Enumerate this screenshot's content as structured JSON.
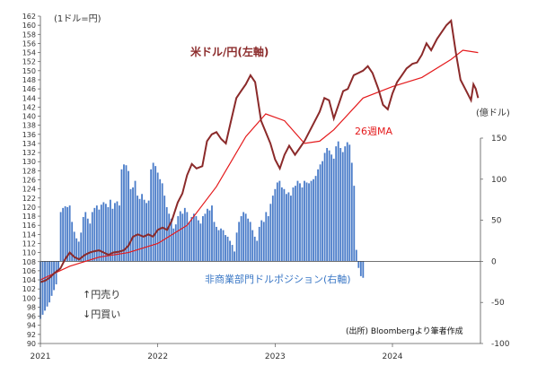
{
  "chart_data": {
    "type": "bar+line",
    "left_axis_unit": "(1ドル=円)",
    "right_axis_unit": "(億ドル)",
    "series_labels": {
      "usdjpy": "米ドル/円(左軸)",
      "ma26": "26週MA",
      "position": "非商業部門ドルポジション(右軸)"
    },
    "annotations": {
      "yen_sell": "↑円売り",
      "yen_buy": "↓円買い"
    },
    "source": "(出所) Bloombergより筆者作成",
    "left_axis": {
      "min": 90,
      "max": 162,
      "step": 2
    },
    "right_axis": {
      "min": -100,
      "max": 150,
      "ticks": [
        150,
        100,
        50,
        0,
        -50,
        -100
      ]
    },
    "x_axis": {
      "min": 2021.0,
      "max": 2024.75,
      "ticks": [
        "2021",
        "2022",
        "2023",
        "2024"
      ]
    },
    "colors": {
      "usdjpy": "#8b2a2a",
      "ma26": "#e41a1c",
      "position": "#4a7cc9"
    },
    "usdjpy": {
      "x": [
        2021.0,
        2021.04,
        2021.08,
        2021.12,
        2021.17,
        2021.21,
        2021.25,
        2021.29,
        2021.33,
        2021.38,
        2021.42,
        2021.46,
        2021.5,
        2021.54,
        2021.58,
        2021.62,
        2021.67,
        2021.71,
        2021.75,
        2021.79,
        2021.83,
        2021.88,
        2021.92,
        2021.96,
        2022.0,
        2022.04,
        2022.08,
        2022.12,
        2022.17,
        2022.21,
        2022.25,
        2022.29,
        2022.33,
        2022.38,
        2022.42,
        2022.46,
        2022.5,
        2022.54,
        2022.58,
        2022.62,
        2022.67,
        2022.71,
        2022.75,
        2022.79,
        2022.83,
        2022.88,
        2022.92,
        2022.96,
        2023.0,
        2023.04,
        2023.08,
        2023.12,
        2023.17,
        2023.21,
        2023.25,
        2023.29,
        2023.33,
        2023.38,
        2023.42,
        2023.46,
        2023.5,
        2023.54,
        2023.58,
        2023.62,
        2023.67,
        2023.71,
        2023.75,
        2023.79,
        2023.83,
        2023.88,
        2023.92,
        2023.96,
        2024.0,
        2024.04,
        2024.08,
        2024.12,
        2024.17,
        2024.21,
        2024.25,
        2024.29,
        2024.33,
        2024.38,
        2024.42,
        2024.46,
        2024.5,
        2024.54,
        2024.58,
        2024.62,
        2024.67
      ],
      "y": [
        103.5,
        103.8,
        104.5,
        105.5,
        106.5,
        108.5,
        110.0,
        109.0,
        108.5,
        109.5,
        110.0,
        110.3,
        110.5,
        110.0,
        109.5,
        110.0,
        110.2,
        110.5,
        111.5,
        113.5,
        114.0,
        113.5,
        114.0,
        113.5,
        115.0,
        115.5,
        115.0,
        117.0,
        121.0,
        123.0,
        127.0,
        129.5,
        128.5,
        129.0,
        134.5,
        136.0,
        136.5,
        135.0,
        134.0,
        138.5,
        144.0,
        145.5,
        147.0,
        149.0,
        147.5,
        139.0,
        136.5,
        134.0,
        130.5,
        128.5,
        131.5,
        133.5,
        131.5,
        133.0,
        134.5,
        136.5,
        138.5,
        141.0,
        144.0,
        143.5,
        139.5,
        142.5,
        145.5,
        146.0,
        149.0,
        149.5,
        150.0,
        151.0,
        149.5,
        146.0,
        142.5,
        141.5,
        145.0,
        147.5,
        149.0,
        150.5,
        151.5,
        151.8,
        153.5,
        156.0,
        154.5,
        157.0,
        158.5,
        160.0,
        161.0,
        154.0,
        148.0,
        146.0,
        143.5
      ],
      "extra_x": [
        2024.69,
        2024.71,
        2024.73
      ],
      "extra_y": [
        147.0,
        146.0,
        144.0
      ]
    },
    "ma26": {
      "x": [
        2021.0,
        2021.25,
        2021.5,
        2021.75,
        2022.0,
        2022.25,
        2022.5,
        2022.75,
        2022.92,
        2023.08,
        2023.25,
        2023.38,
        2023.5,
        2023.75,
        2024.0,
        2024.25,
        2024.5,
        2024.6,
        2024.73
      ],
      "y": [
        104.0,
        107.0,
        109.0,
        110.0,
        112.0,
        116.0,
        124.5,
        135.5,
        140.5,
        139.0,
        134.0,
        134.5,
        137.0,
        144.0,
        146.5,
        148.5,
        152.5,
        154.5,
        154.0
      ]
    },
    "position": {
      "x_start": 2021.0,
      "x_step": 0.019231,
      "values": [
        -70,
        -65,
        -60,
        -55,
        -50,
        -42,
        -35,
        -28,
        -10,
        60,
        65,
        67,
        66,
        68,
        48,
        36,
        28,
        24,
        35,
        54,
        60,
        52,
        46,
        60,
        65,
        68,
        63,
        69,
        72,
        70,
        66,
        75,
        64,
        71,
        73,
        68,
        112,
        118,
        117,
        110,
        88,
        90,
        98,
        80,
        76,
        82,
        75,
        71,
        74,
        112,
        120,
        116,
        108,
        100,
        95,
        80,
        66,
        58,
        52,
        40,
        45,
        55,
        61,
        58,
        65,
        60,
        48,
        54,
        58,
        55,
        50,
        46,
        55,
        58,
        64,
        62,
        68,
        48,
        42,
        38,
        40,
        38,
        32,
        30,
        25,
        20,
        12,
        35,
        48,
        55,
        60,
        58,
        52,
        48,
        38,
        30,
        25,
        42,
        50,
        48,
        60,
        55,
        70,
        80,
        88,
        96,
        98,
        90,
        88,
        82,
        84,
        80,
        90,
        92,
        98,
        95,
        90,
        98,
        96,
        95,
        98,
        100,
        104,
        112,
        118,
        122,
        132,
        138,
        135,
        130,
        125,
        140,
        146,
        138,
        133,
        140,
        145,
        142,
        120,
        92,
        14,
        -8,
        -18,
        -20
      ]
    }
  }
}
